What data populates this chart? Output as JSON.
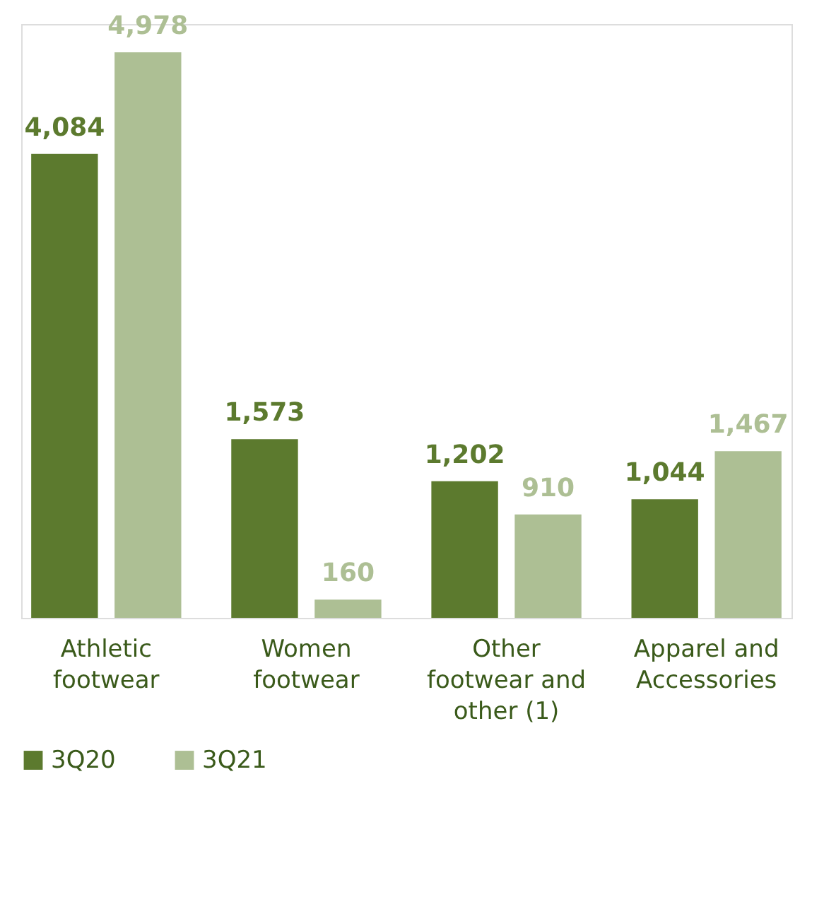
{
  "chart_data": {
    "type": "bar",
    "categories": [
      "Athletic footwear",
      "Women footwear",
      "Other footwear and other (1)",
      "Apparel and Accessories"
    ],
    "series": [
      {
        "name": "3Q20",
        "color": "#5c7a2e",
        "values": [
          4084,
          1573,
          1202,
          1044
        ],
        "value_labels": [
          "4,084",
          "1,573",
          "1,202",
          "1,044"
        ]
      },
      {
        "name": "3Q21",
        "color": "#adbf94",
        "values": [
          4978,
          160,
          910,
          1467
        ],
        "value_labels": [
          "4,978",
          "160",
          "910",
          "1,467"
        ]
      }
    ],
    "legend": "bottom",
    "grid": false,
    "tick_labels": "x"
  }
}
